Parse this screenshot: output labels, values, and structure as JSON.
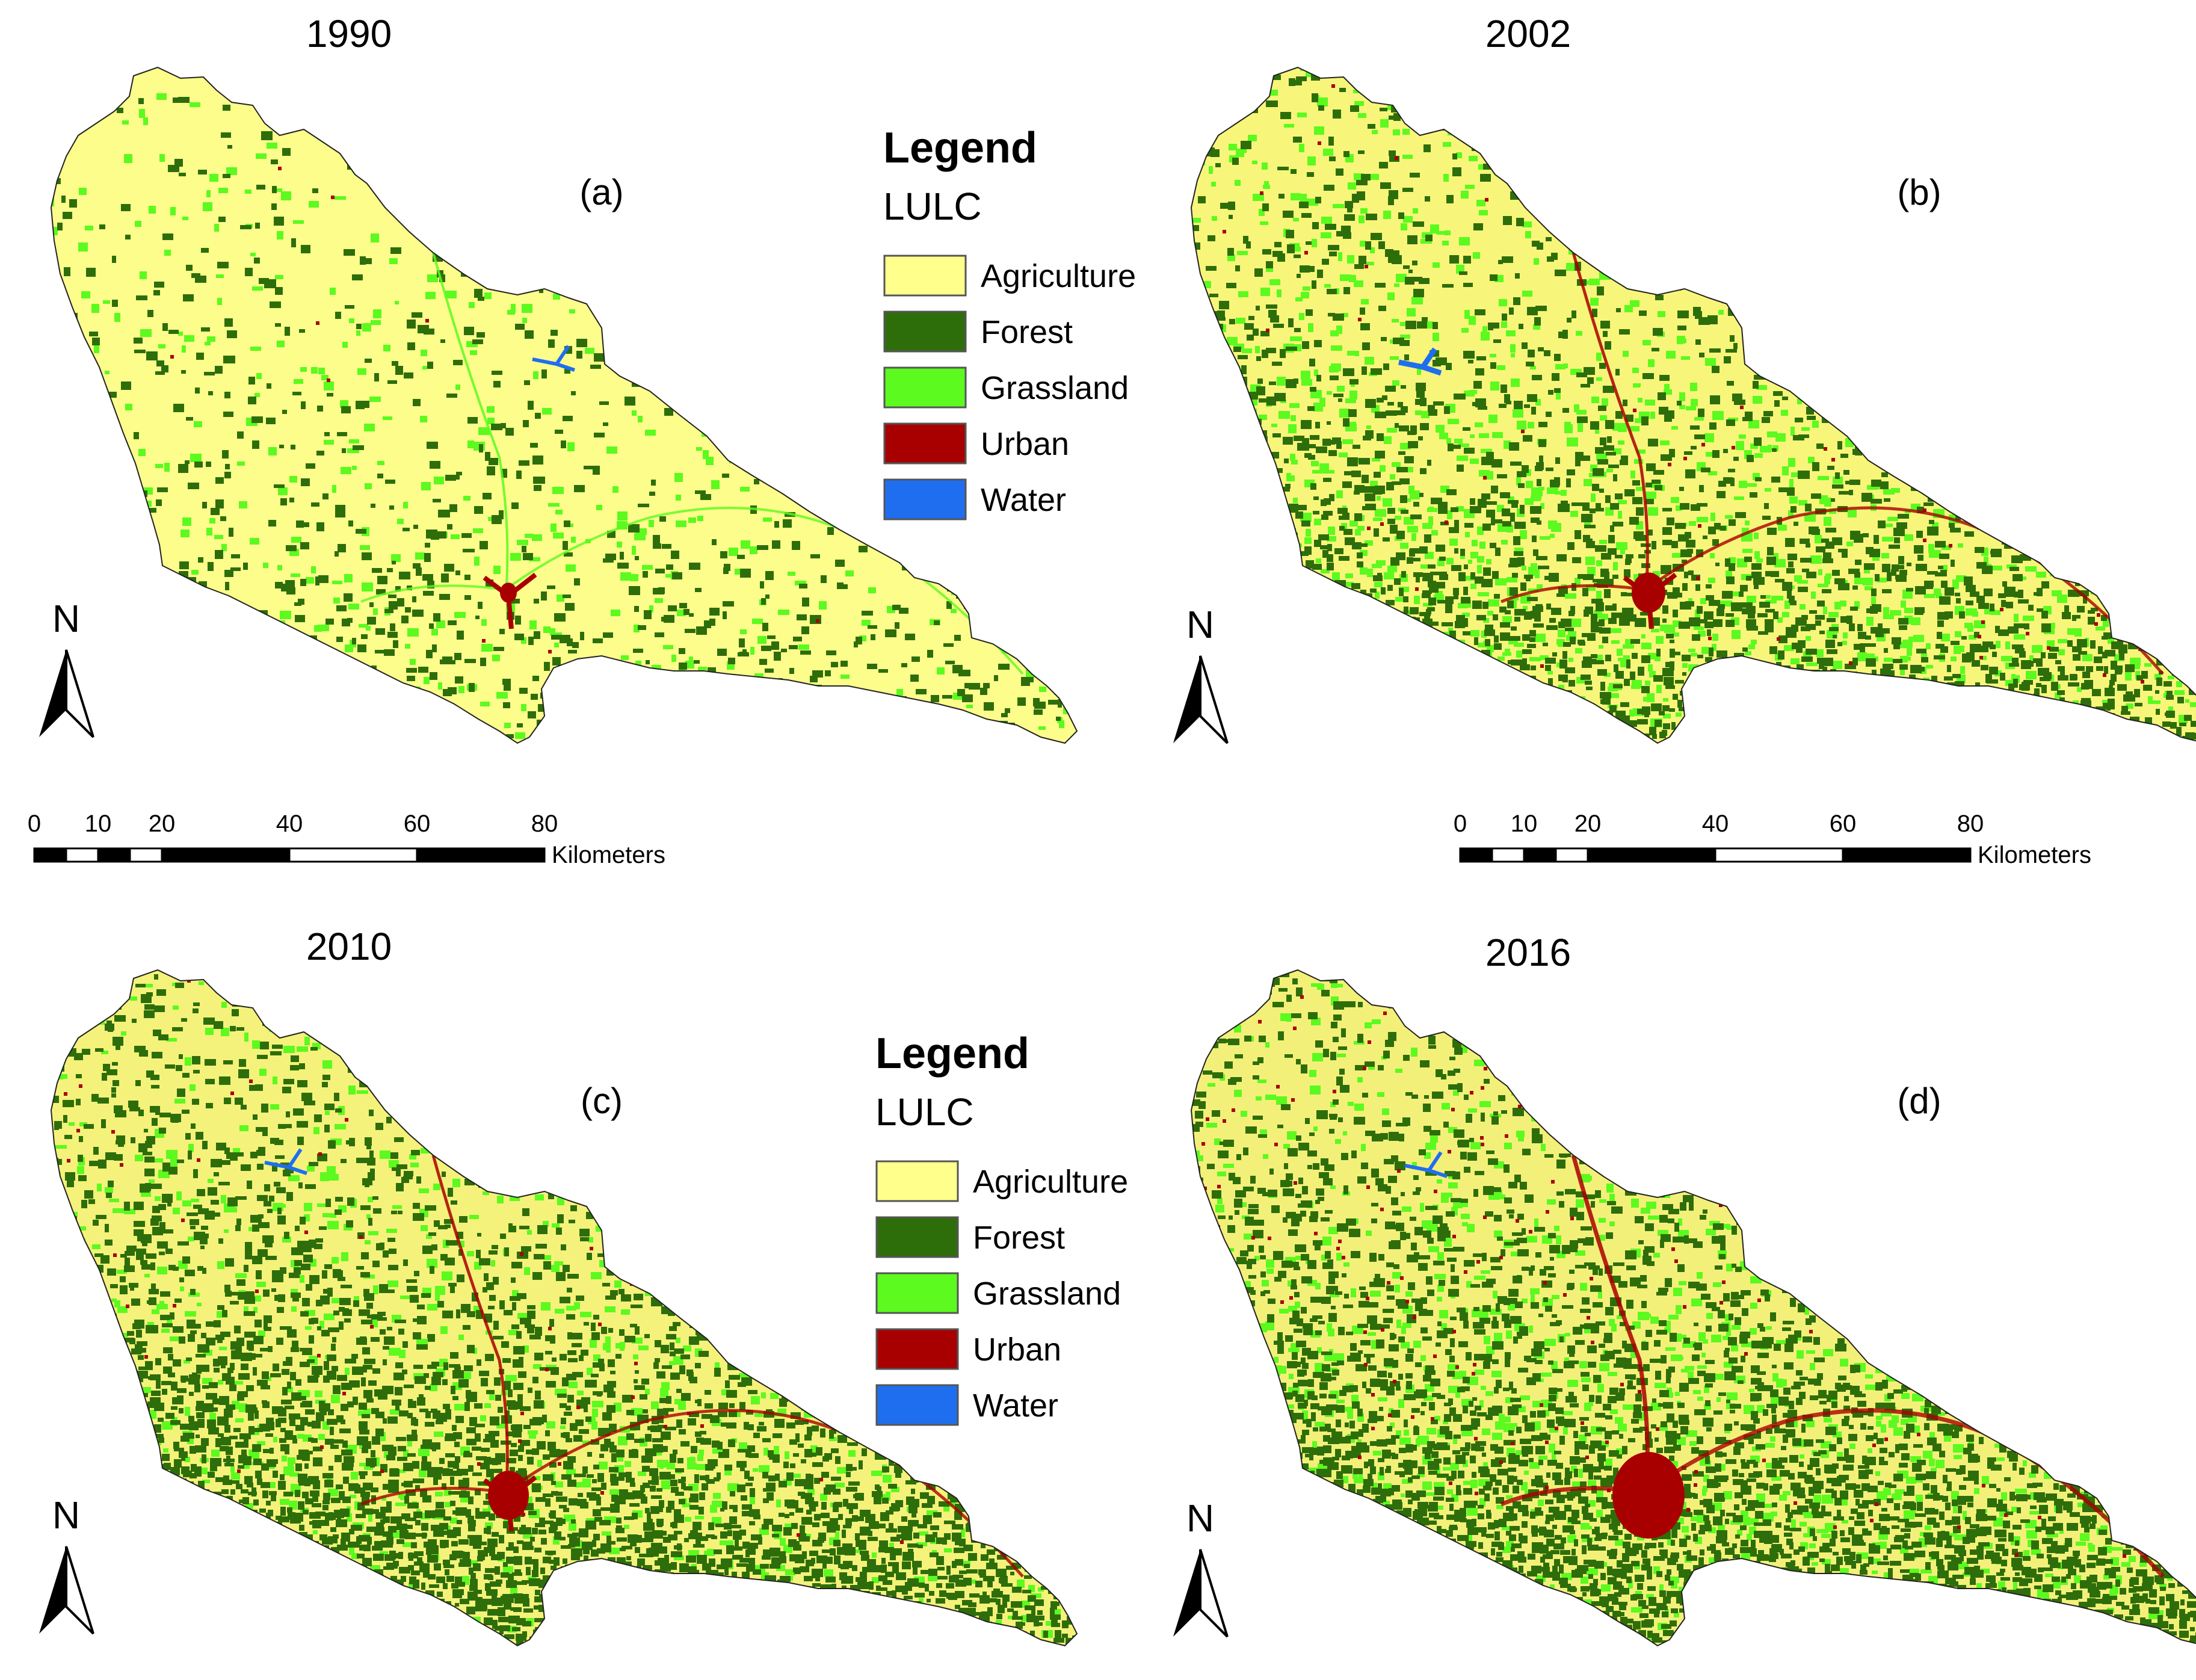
{
  "panels": [
    {
      "year": "1990",
      "label": "(a)",
      "forest_density": 0.1,
      "grass_density": 0.06,
      "urban_density": 0.003,
      "tint": "#fdfd8c"
    },
    {
      "year": "2002",
      "label": "(b)",
      "forest_density": 0.26,
      "grass_density": 0.18,
      "urban_density": 0.01,
      "tint": "#f7f67a"
    },
    {
      "year": "2010",
      "label": "(c)",
      "forest_density": 0.42,
      "grass_density": 0.12,
      "urban_density": 0.012,
      "tint": "#f4f27a"
    },
    {
      "year": "2016",
      "label": "(d)",
      "forest_density": 0.4,
      "grass_density": 0.16,
      "urban_density": 0.028,
      "tint": "#f3f07a"
    }
  ],
  "legend": {
    "title": "Legend",
    "subtitle": "LULC",
    "items": [
      {
        "label": "Agriculture",
        "color": "#ffff8c"
      },
      {
        "label": "Forest",
        "color": "#2e6e0a"
      },
      {
        "label": "Grassland",
        "color": "#5cfa1e"
      },
      {
        "label": "Urban",
        "color": "#a80000"
      },
      {
        "label": "Water",
        "color": "#1f6ef0"
      }
    ]
  },
  "north_label": "N",
  "scale_bar": {
    "ticks": [
      "0",
      "10",
      "20",
      "40",
      "60",
      "80"
    ],
    "unit": "Kilometers"
  }
}
